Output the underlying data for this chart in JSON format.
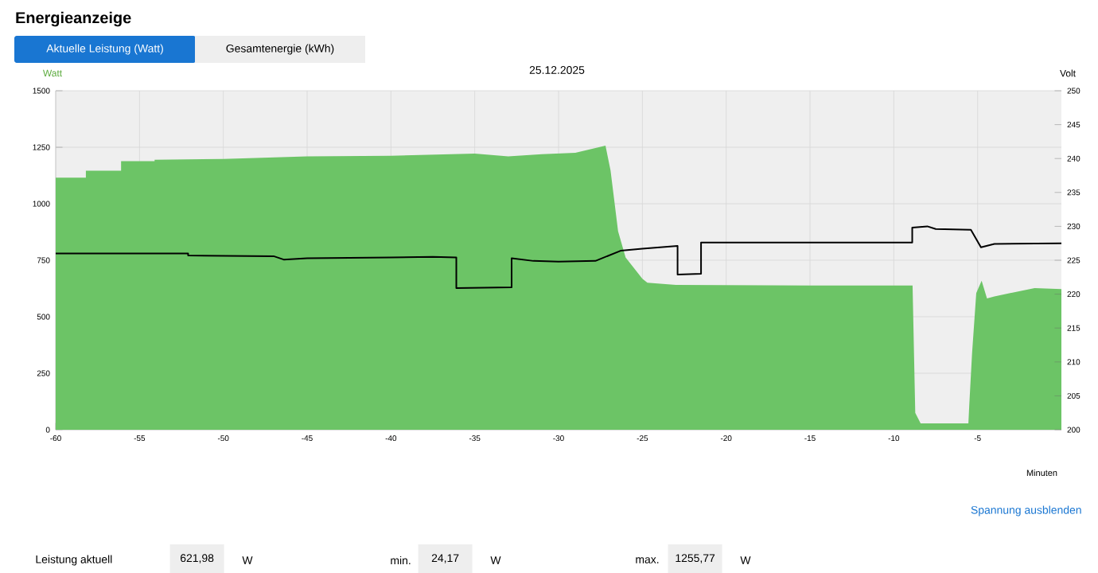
{
  "chart_data": {
    "type": "area",
    "title": "Energieanzeige",
    "subtitle": "25.12.2025",
    "xlabel": "Minuten",
    "ylabel": "Watt",
    "y2label": "Volt",
    "xlim": [
      -60,
      0
    ],
    "xticks": [
      -60,
      -55,
      -50,
      -45,
      -40,
      -35,
      -30,
      -25,
      -20,
      -15,
      -10,
      -5
    ],
    "ylim": [
      0,
      1500
    ],
    "yticks": [
      0,
      250,
      500,
      750,
      1000,
      1250,
      1500
    ],
    "y2lim": [
      200,
      250
    ],
    "y2ticks": [
      200,
      205,
      210,
      215,
      220,
      225,
      230,
      235,
      240,
      245,
      250
    ],
    "grid": true,
    "series": [
      {
        "color": "#6cc466",
        "x": [
          -60,
          -58.2,
          -58.2,
          -56.1,
          -56.1,
          -54.1,
          -54.1,
          -50,
          -45,
          -40,
          -35,
          -33,
          -31,
          -29,
          -27.2,
          -26.9,
          -26.45,
          -26.0,
          -25.0,
          -24.7,
          -23,
          -15,
          -8.88,
          -8.72,
          -8.4,
          -5.55,
          -5.5,
          -5.33,
          -5.08,
          -4.76,
          -4.44,
          -4,
          -1.6,
          0
        ],
        "values": [
          1115,
          1115,
          1146,
          1146,
          1188,
          1188,
          1195,
          1198,
          1210,
          1212,
          1222,
          1210,
          1219,
          1225,
          1257,
          1148,
          879,
          762,
          668,
          651,
          641,
          638,
          638,
          75,
          28,
          28,
          105,
          339,
          605,
          659,
          581,
          590,
          627,
          622
        ]
      },
      {
        "type": "line",
        "axis": "y2",
        "color": "#000000",
        "x": [
          -60,
          -52.1,
          -52.1,
          -47,
          -46.4,
          -45,
          -40,
          -37.5,
          -36.1,
          -36.1,
          -32.8,
          -32.8,
          -31.5,
          -30,
          -27.8,
          -26.3,
          -25,
          -22.9,
          -22.9,
          -21.5,
          -21.5,
          -15,
          -8.9,
          -8.9,
          -8.0,
          -7.5,
          -5.4,
          -4.8,
          -4,
          0
        ],
        "values": [
          226.0,
          226.0,
          225.7,
          225.6,
          225.1,
          225.3,
          225.4,
          225.5,
          225.4,
          220.9,
          221.0,
          225.3,
          224.9,
          224.8,
          224.9,
          226.4,
          226.7,
          227.1,
          222.9,
          223.0,
          227.6,
          227.6,
          227.6,
          229.8,
          230.0,
          229.6,
          229.5,
          226.9,
          227.4,
          227.5
        ]
      }
    ],
    "annotations": [
      "Aktuelle Leistung (Watt)",
      "Gesamtenergie (kWh)",
      "Spannung ausblenden",
      "Leistung aktuell",
      "621,98",
      "W",
      "min.",
      "24,17",
      "W",
      "max.",
      "1255,77",
      "W"
    ]
  }
}
